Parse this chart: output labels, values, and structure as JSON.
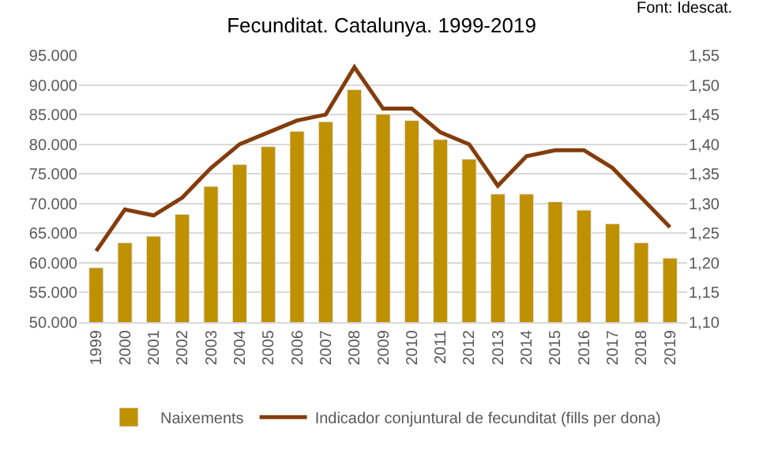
{
  "chart_data": {
    "type": "bar",
    "title": "Fecunditat. Catalunya. 1999-2019",
    "annotations": [
      "Font: Idescat."
    ],
    "categories": [
      "1999",
      "2000",
      "2001",
      "2002",
      "2003",
      "2004",
      "2005",
      "2006",
      "2007",
      "2008",
      "2009",
      "2010",
      "2011",
      "2012",
      "2013",
      "2014",
      "2015",
      "2016",
      "2017",
      "2018",
      "2019"
    ],
    "series": [
      {
        "name": "Naixements",
        "color": "#bf9000",
        "values": [
          59200,
          63400,
          64500,
          68200,
          72900,
          76600,
          79600,
          82200,
          83800,
          89200,
          85100,
          84000,
          80800,
          77500,
          71600,
          71600,
          70300,
          68900,
          66600,
          63400,
          60800
        ]
      },
      {
        "name": "Indicador conjuntural de fecunditat (fills per dona)",
        "type": "line",
        "axis": "y2",
        "color": "#843c0c",
        "values": [
          1.22,
          1.29,
          1.28,
          1.31,
          1.36,
          1.4,
          1.42,
          1.44,
          1.45,
          1.53,
          1.46,
          1.46,
          1.42,
          1.4,
          1.33,
          1.38,
          1.39,
          1.39,
          1.36,
          1.31,
          1.26
        ]
      }
    ],
    "ylim": [
      50000,
      95000
    ],
    "yticks": [
      {
        "value": 50000,
        "label": "50.000"
      },
      {
        "value": 55000,
        "label": "55.000"
      },
      {
        "value": 60000,
        "label": "60.000"
      },
      {
        "value": 65000,
        "label": "65.000"
      },
      {
        "value": 70000,
        "label": "70.000"
      },
      {
        "value": 75000,
        "label": "75.000"
      },
      {
        "value": 80000,
        "label": "80.000"
      },
      {
        "value": 85000,
        "label": "85.000"
      },
      {
        "value": 90000,
        "label": "90.000"
      },
      {
        "value": 95000,
        "label": "95.000"
      }
    ],
    "y2lim": [
      1.1,
      1.55
    ],
    "y2ticks": [
      {
        "value": 1.1,
        "label": "1,10"
      },
      {
        "value": 1.15,
        "label": "1,15"
      },
      {
        "value": 1.2,
        "label": "1,20"
      },
      {
        "value": 1.25,
        "label": "1,25"
      },
      {
        "value": 1.3,
        "label": "1,30"
      },
      {
        "value": 1.35,
        "label": "1,35"
      },
      {
        "value": 1.4,
        "label": "1,40"
      },
      {
        "value": 1.45,
        "label": "1,45"
      },
      {
        "value": 1.5,
        "label": "1,50"
      },
      {
        "value": 1.55,
        "label": "1,55"
      }
    ],
    "grid": "y",
    "legend": "bottom",
    "marker": "none",
    "line_style": "solid"
  }
}
